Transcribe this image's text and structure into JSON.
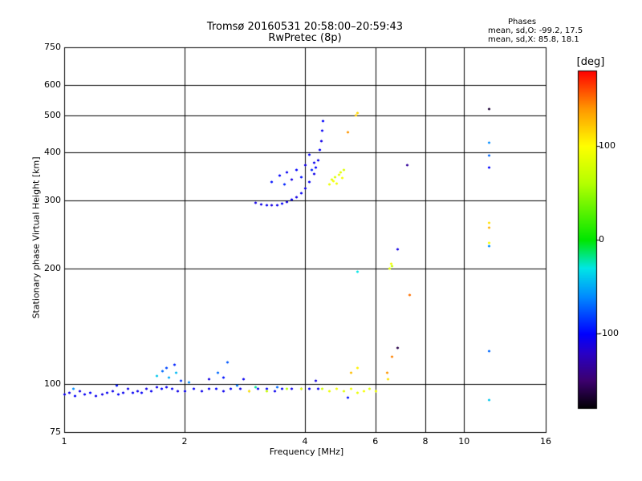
{
  "header": {
    "title_line1": "Tromsø 20160531 20:58:00–20:59:43",
    "title_line2": "RwPretec (8p)"
  },
  "phases": {
    "heading": "Phases",
    "line_o": "mean, sd,O: -99.2, 17.5",
    "line_x": "mean, sd,X:  85.8, 18.1"
  },
  "colorbar": {
    "unit": "[deg]",
    "range": [
      -180,
      180
    ],
    "ticks": [
      {
        "value": 100,
        "label": "100"
      },
      {
        "value": 0,
        "label": "0"
      },
      {
        "value": -100,
        "label": "-100"
      }
    ]
  },
  "chart_data": {
    "type": "scatter",
    "title": "Tromsø 20160531 20:58:00–20:59:43",
    "subtitle": "RwPretec (8p)",
    "xlabel": "Frequency [MHz]",
    "ylabel": "Stationary phase Virtual Height [km]",
    "xscale": "log",
    "yscale": "log",
    "xlim": [
      1,
      16
    ],
    "ylim": [
      75,
      750
    ],
    "xticks": [
      1,
      2,
      4,
      6,
      8,
      10,
      16
    ],
    "yticks": [
      75,
      100,
      200,
      300,
      400,
      500,
      600,
      750
    ],
    "grid": true,
    "color_variable": "phase [deg]",
    "series": [
      {
        "points": [
          [
            1.0,
            94,
            -105
          ],
          [
            1.03,
            95,
            -108
          ],
          [
            1.06,
            93,
            -102
          ],
          [
            1.09,
            96,
            -110
          ],
          [
            1.12,
            94,
            -104
          ],
          [
            1.16,
            95,
            -100
          ],
          [
            1.2,
            93,
            -106
          ],
          [
            1.24,
            94,
            -109
          ],
          [
            1.28,
            95,
            -103
          ],
          [
            1.32,
            96,
            -107
          ],
          [
            1.36,
            94,
            -101
          ],
          [
            1.4,
            95,
            -105
          ],
          [
            1.44,
            97,
            -108
          ],
          [
            1.48,
            95,
            -103
          ],
          [
            1.52,
            96,
            -106
          ],
          [
            1.56,
            95,
            -102
          ],
          [
            1.6,
            97,
            -109
          ],
          [
            1.65,
            96,
            -104
          ],
          [
            1.7,
            98,
            -107
          ],
          [
            1.75,
            97,
            -101
          ],
          [
            1.8,
            98,
            -106
          ],
          [
            1.86,
            97,
            -103
          ],
          [
            1.92,
            96,
            -108
          ],
          [
            2.0,
            96,
            -105
          ],
          [
            2.1,
            97,
            -102
          ],
          [
            2.2,
            96,
            -107
          ],
          [
            2.3,
            97,
            -104
          ],
          [
            2.4,
            97,
            -100
          ],
          [
            2.5,
            96,
            -106
          ],
          [
            2.6,
            97,
            -103
          ],
          [
            2.75,
            97,
            -108
          ],
          [
            2.9,
            96,
            -102
          ],
          [
            3.05,
            97,
            -105
          ],
          [
            3.2,
            97,
            -101
          ],
          [
            3.35,
            96,
            -106
          ],
          [
            3.5,
            97,
            -103
          ],
          [
            3.7,
            97,
            -108
          ],
          [
            3.9,
            97,
            -104
          ],
          [
            4.1,
            97,
            -102
          ],
          [
            4.3,
            97,
            -106
          ],
          [
            1.05,
            97,
            -60
          ],
          [
            1.35,
            99,
            -95
          ],
          [
            1.7,
            105,
            -40
          ],
          [
            1.76,
            108,
            -70
          ],
          [
            1.8,
            110,
            -80
          ],
          [
            1.82,
            104,
            -50
          ],
          [
            1.88,
            112,
            -90
          ],
          [
            1.9,
            107,
            -45
          ],
          [
            1.95,
            102,
            -85
          ],
          [
            2.05,
            101,
            -60
          ],
          [
            2.3,
            103,
            -110
          ],
          [
            2.42,
            107,
            -70
          ],
          [
            2.5,
            104,
            -95
          ],
          [
            2.55,
            114,
            -75
          ],
          [
            2.7,
            99,
            -65
          ],
          [
            2.8,
            103,
            -105
          ],
          [
            3.0,
            98,
            -20
          ],
          [
            3.4,
            98,
            -70
          ],
          [
            4.25,
            102,
            -110
          ],
          [
            3.0,
            296,
            -110
          ],
          [
            3.1,
            293,
            -108
          ],
          [
            3.2,
            292,
            -104
          ],
          [
            3.3,
            291,
            -111
          ],
          [
            3.4,
            292,
            -106
          ],
          [
            3.5,
            294,
            -102
          ],
          [
            3.6,
            297,
            -109
          ],
          [
            3.7,
            301,
            -105
          ],
          [
            3.8,
            306,
            -110
          ],
          [
            3.9,
            313,
            -103
          ],
          [
            4.0,
            322,
            -107
          ],
          [
            4.1,
            335,
            -104
          ],
          [
            4.2,
            352,
            -108
          ],
          [
            4.25,
            366,
            -100
          ],
          [
            4.3,
            382,
            -106
          ],
          [
            4.35,
            405,
            -102
          ],
          [
            4.38,
            428,
            -109
          ],
          [
            4.4,
            455,
            -104
          ],
          [
            4.42,
            482,
            -100
          ],
          [
            3.3,
            335,
            -95
          ],
          [
            3.45,
            348,
            -100
          ],
          [
            3.55,
            330,
            -90
          ],
          [
            3.6,
            355,
            -105
          ],
          [
            3.7,
            340,
            -110
          ],
          [
            3.8,
            360,
            -100
          ],
          [
            3.9,
            345,
            -95
          ],
          [
            4.0,
            370,
            -108
          ],
          [
            4.1,
            395,
            -100
          ],
          [
            4.15,
            360,
            -90
          ],
          [
            4.2,
            375,
            -105
          ],
          [
            5.4,
            196,
            -30
          ],
          [
            5.1,
            92,
            -95
          ],
          [
            7.2,
            371,
            -135
          ],
          [
            6.8,
            224,
            -110
          ],
          [
            6.8,
            124,
            -160
          ],
          [
            11.5,
            518,
            -165
          ],
          [
            11.5,
            424,
            -60
          ],
          [
            11.5,
            392,
            -70
          ],
          [
            11.5,
            365,
            -100
          ],
          [
            11.5,
            228,
            -60
          ],
          [
            11.5,
            122,
            -70
          ],
          [
            11.5,
            91,
            -40
          ]
        ]
      },
      {
        "points": [
          [
            4.6,
            96,
            90
          ],
          [
            4.8,
            97,
            95
          ],
          [
            5.0,
            96,
            85
          ],
          [
            5.2,
            97,
            92
          ],
          [
            5.4,
            95,
            88
          ],
          [
            5.6,
            96,
            96
          ],
          [
            5.8,
            97,
            84
          ],
          [
            6.0,
            96,
            91
          ],
          [
            3.2,
            96,
            70
          ],
          [
            3.6,
            97,
            60
          ],
          [
            3.9,
            97,
            85
          ],
          [
            4.4,
            97,
            75
          ],
          [
            2.9,
            96,
            110
          ],
          [
            4.6,
            330,
            90
          ],
          [
            4.65,
            340,
            86
          ],
          [
            4.7,
            336,
            95
          ],
          [
            4.75,
            345,
            80
          ],
          [
            4.8,
            332,
            92
          ],
          [
            4.85,
            350,
            88
          ],
          [
            4.9,
            355,
            84
          ],
          [
            4.95,
            343,
            95
          ],
          [
            5.0,
            360,
            82
          ],
          [
            5.35,
            500,
            120
          ],
          [
            5.4,
            505,
            115
          ],
          [
            5.1,
            452,
            140
          ],
          [
            5.2,
            107,
            125
          ],
          [
            5.4,
            110,
            105
          ],
          [
            6.6,
            118,
            145
          ],
          [
            6.4,
            107,
            140
          ],
          [
            6.45,
            103,
            110
          ],
          [
            6.5,
            200,
            85
          ],
          [
            6.55,
            205,
            95
          ],
          [
            6.6,
            202,
            70
          ],
          [
            7.3,
            170,
            150
          ],
          [
            11.5,
            262,
            110
          ],
          [
            11.5,
            255,
            130
          ],
          [
            11.5,
            233,
            95
          ]
        ]
      }
    ]
  }
}
